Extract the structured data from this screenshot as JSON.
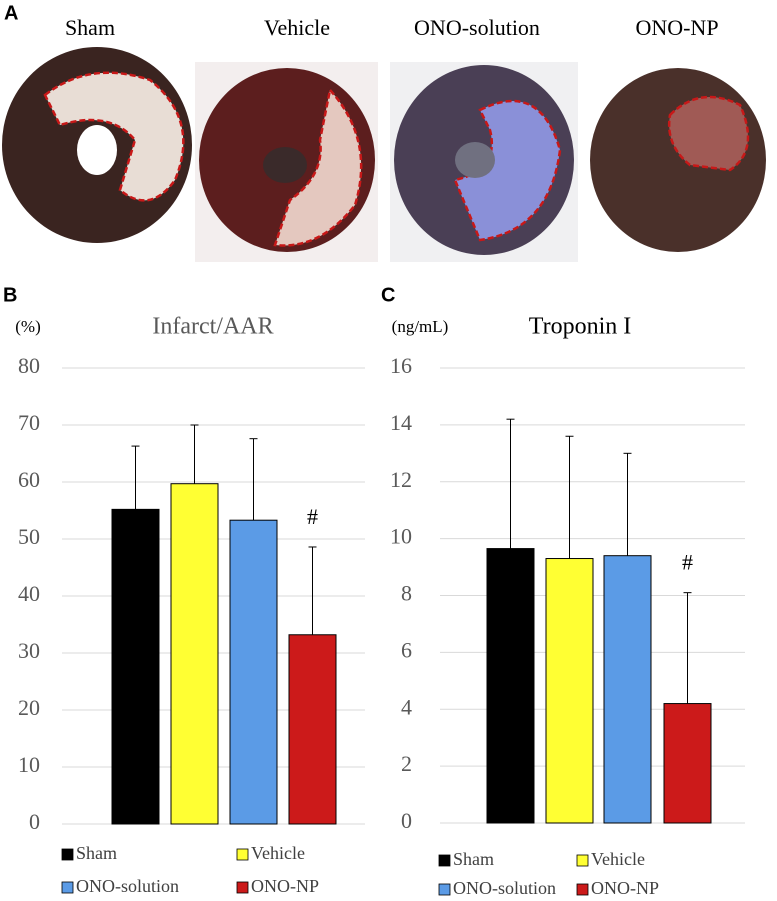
{
  "figure": {
    "panel_a": {
      "label": "A",
      "captions": [
        "Sham",
        "Vehicle",
        "ONO-solution",
        "ONO-NP"
      ]
    }
  },
  "chart_data": [
    {
      "type": "bar",
      "label": "B",
      "unit": "(%)",
      "title": "Infarct/AAR",
      "categories": [
        "Sham",
        "Vehicle",
        "ONO-solution",
        "ONO-NP"
      ],
      "values": [
        55.2,
        59.7,
        53.3,
        33.2
      ],
      "errors": [
        11.1,
        10.3,
        14.3,
        15.4
      ],
      "colors": [
        "#000000",
        "#ffff33",
        "#5b9be6",
        "#cc1a1a"
      ],
      "annotations": [
        null,
        null,
        null,
        "#"
      ],
      "ylim": [
        0,
        80
      ],
      "yticks": [
        0,
        10,
        20,
        30,
        40,
        50,
        60,
        70,
        80
      ],
      "grid": true
    },
    {
      "type": "bar",
      "label": "C",
      "unit": "(ng/mL)",
      "title": "Troponin I",
      "categories": [
        "Sham",
        "Vehicle",
        "ONO-solution",
        "ONO-NP"
      ],
      "values": [
        9.65,
        9.3,
        9.4,
        4.2
      ],
      "errors": [
        4.55,
        4.3,
        3.6,
        3.9
      ],
      "colors": [
        "#000000",
        "#ffff33",
        "#5b9be6",
        "#cc1a1a"
      ],
      "annotations": [
        null,
        null,
        null,
        "#"
      ],
      "ylim": [
        0,
        16
      ],
      "yticks": [
        0,
        2,
        4,
        6,
        8,
        10,
        12,
        14,
        16
      ],
      "grid": true
    }
  ]
}
